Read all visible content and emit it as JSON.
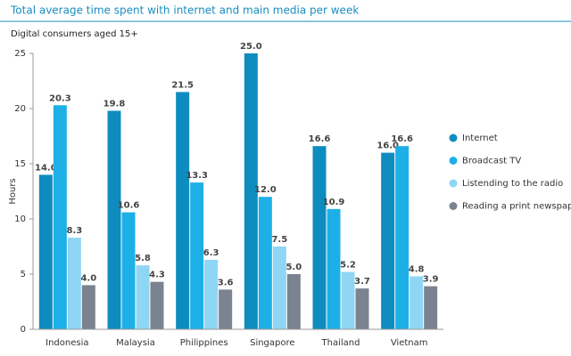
{
  "chart_data": {
    "type": "bar",
    "title": "Total average time spent with internet and main media per week",
    "subtitle": "Digital consumers aged 15+",
    "y_label": "Hours",
    "categories": [
      "Indonesia",
      "Malaysia",
      "Philippines",
      "Singapore",
      "Thailand",
      "Vietnam"
    ],
    "series": [
      {
        "name": "Internet",
        "color": "#0f8cbf",
        "values": [
          14.0,
          19.8,
          21.5,
          25.0,
          16.6,
          16.0
        ],
        "value_labels": [
          "14.0",
          "19.8",
          "21.5",
          "25.0",
          "16.6",
          "16.0"
        ]
      },
      {
        "name": "Broadcast TV",
        "color": "#1db0e6",
        "values": [
          20.3,
          10.6,
          13.3,
          12.0,
          10.9,
          16.6
        ],
        "value_labels": [
          "20.3",
          "10.6",
          "13.3",
          "12.0",
          "10.9",
          "16.6"
        ]
      },
      {
        "name": "Listending to the radio",
        "color": "#8fd6f4",
        "values": [
          8.3,
          5.8,
          6.3,
          7.5,
          5.2,
          4.8
        ],
        "value_labels": [
          "8.3",
          "5.8",
          "6.3",
          "7.5",
          "5.2",
          "4.8"
        ]
      },
      {
        "name": "Reading a print newspaper",
        "color": "#7a838f",
        "values": [
          4.0,
          4.3,
          3.6,
          5.0,
          3.7,
          3.9
        ],
        "value_labels": [
          "4.0",
          "4.3",
          "3.6",
          "5.0",
          "3.7",
          "3.9"
        ]
      }
    ],
    "ylim": [
      0,
      25
    ],
    "yticks": [
      0,
      5,
      10,
      15,
      20,
      25
    ],
    "grid": false,
    "legend": "right"
  }
}
